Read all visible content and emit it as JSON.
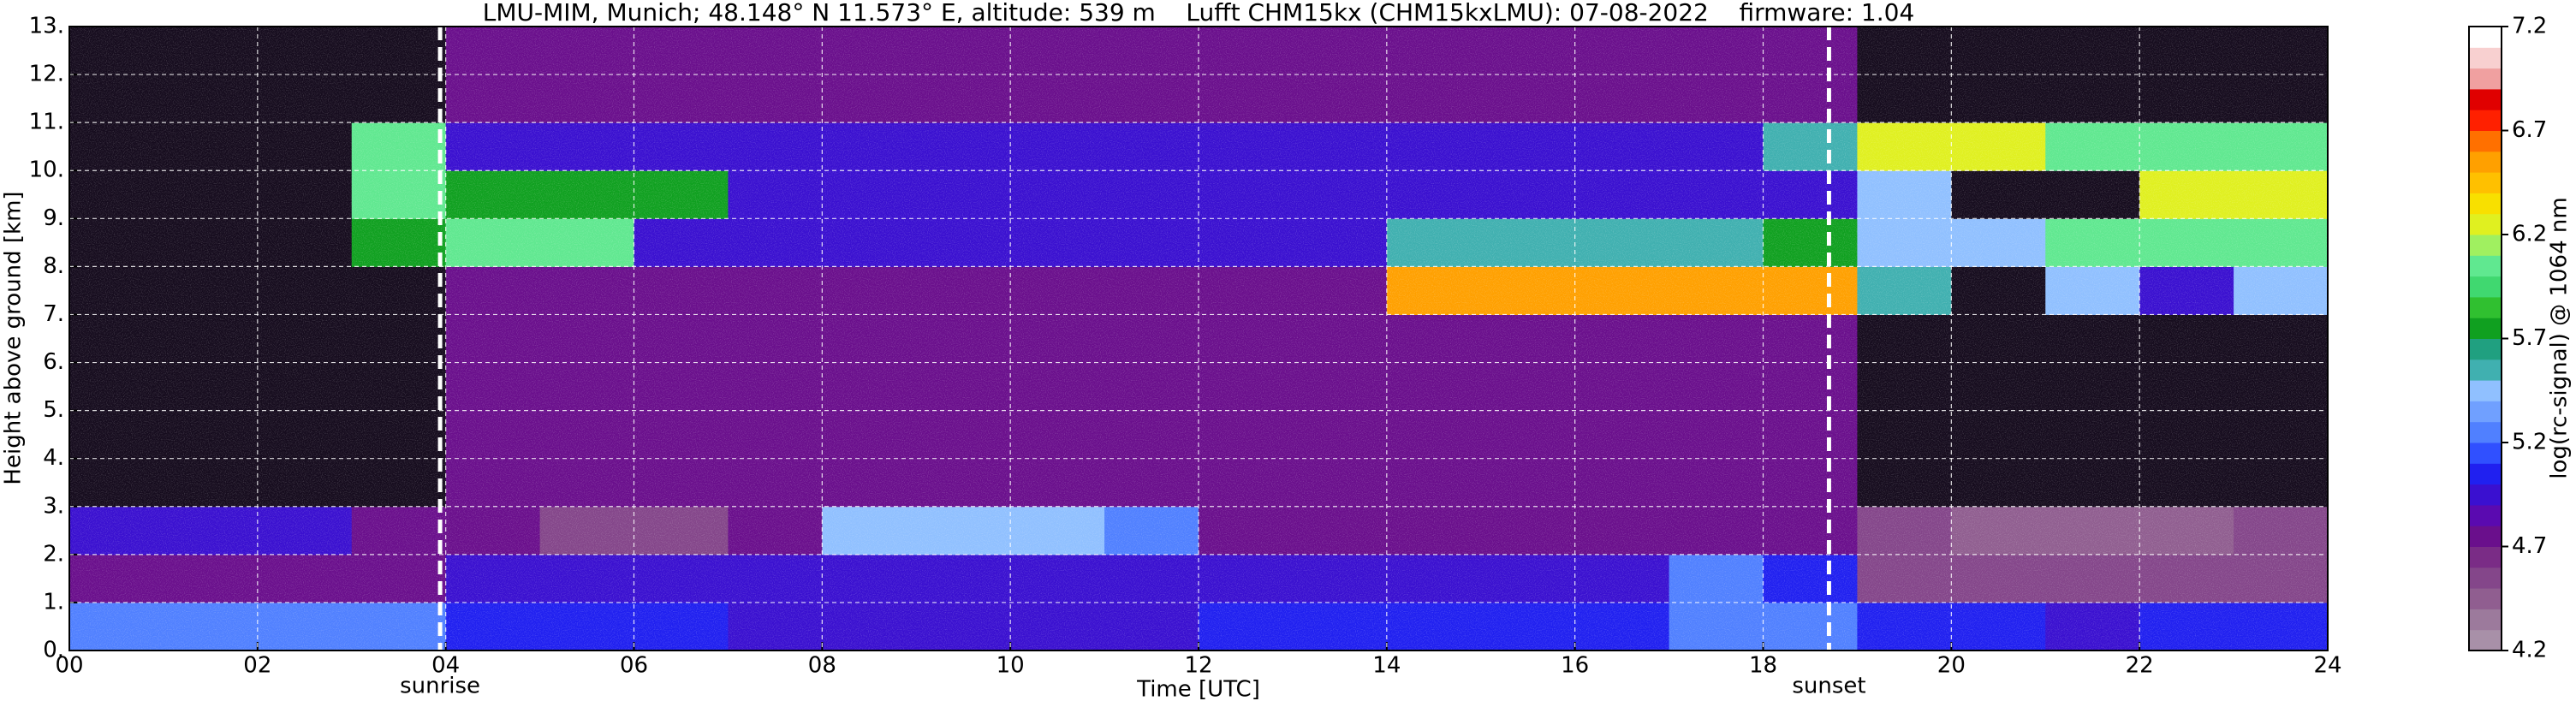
{
  "chart_data": {
    "type": "heatmap",
    "title": "LMU-MIM, Munich; 48.148° N 11.573° E, altitude: 539 m    Lufft CHM15kx (CHM15kxLMU): 07-08-2022    firmware: 1.04",
    "xlabel": "Time [UTC]",
    "ylabel": "Height above ground [km]",
    "colorbar_label": "log(rc-signal) @ 1064 nm",
    "xlim": [
      0,
      24
    ],
    "xticks": [
      {
        "value": 0,
        "label": "00"
      },
      {
        "value": 2,
        "label": "02"
      },
      {
        "value": 4,
        "label": "04"
      },
      {
        "value": 6,
        "label": "06"
      },
      {
        "value": 8,
        "label": "08"
      },
      {
        "value": 10,
        "label": "10"
      },
      {
        "value": 12,
        "label": "12"
      },
      {
        "value": 14,
        "label": "14"
      },
      {
        "value": 16,
        "label": "16"
      },
      {
        "value": 18,
        "label": "18"
      },
      {
        "value": 20,
        "label": "20"
      },
      {
        "value": 22,
        "label": "22"
      },
      {
        "value": 24,
        "label": "24"
      }
    ],
    "ylim": [
      0,
      13
    ],
    "yticks": [
      {
        "value": 0,
        "label": "0."
      },
      {
        "value": 1,
        "label": "1."
      },
      {
        "value": 2,
        "label": "2."
      },
      {
        "value": 3,
        "label": "3."
      },
      {
        "value": 4,
        "label": "4."
      },
      {
        "value": 5,
        "label": "5."
      },
      {
        "value": 6,
        "label": "6."
      },
      {
        "value": 7,
        "label": "7."
      },
      {
        "value": 8,
        "label": "8."
      },
      {
        "value": 9,
        "label": "9."
      },
      {
        "value": 10,
        "label": "10."
      },
      {
        "value": 11,
        "label": "11."
      },
      {
        "value": 12,
        "label": "12."
      },
      {
        "value": 13,
        "label": "13."
      }
    ],
    "grid": true,
    "clim": [
      4.2,
      7.2
    ],
    "cticks": [
      4.2,
      4.7,
      5.2,
      5.7,
      6.2,
      6.7,
      7.2
    ],
    "colormap": [
      "#a890a8",
      "#9c7a9c",
      "#905e90",
      "#84468a",
      "#7a2c86",
      "#6a0f8c",
      "#5a0ab0",
      "#3a10d0",
      "#2020f0",
      "#3050ff",
      "#5080ff",
      "#70a0ff",
      "#90c0ff",
      "#40b0b0",
      "#20a080",
      "#10a020",
      "#30c030",
      "#40d870",
      "#60e890",
      "#a0f060",
      "#e0f020",
      "#f8e000",
      "#ffc000",
      "#ffa000",
      "#ff7000",
      "#ff2000",
      "#e00000",
      "#f0a0a0",
      "#f8d0d0",
      "#ffffff"
    ],
    "under_color": "#160c1e",
    "x_bins": [
      0,
      1,
      2,
      3,
      4,
      5,
      6,
      7,
      8,
      9,
      10,
      11,
      12,
      13,
      14,
      15,
      16,
      17,
      18,
      19,
      20,
      21,
      22,
      23,
      24
    ],
    "y_bins": [
      0,
      1,
      2,
      3,
      4,
      5,
      6,
      7,
      8,
      9,
      10,
      11,
      12,
      13
    ],
    "z": [
      [
        5.3,
        5.3,
        5.2,
        5.2,
        5.1,
        5.1,
        5.1,
        5.0,
        5.0,
        5.0,
        5.0,
        5.0,
        5.1,
        5.1,
        5.1,
        5.1,
        5.1,
        5.2,
        5.2,
        5.1,
        5.1,
        5.0,
        5.1,
        5.1
      ],
      [
        4.7,
        4.7,
        4.7,
        4.8,
        4.9,
        4.9,
        4.9,
        4.9,
        4.9,
        4.9,
        4.9,
        4.9,
        4.9,
        4.9,
        4.9,
        4.9,
        5.0,
        5.3,
        5.1,
        4.6,
        4.6,
        4.6,
        4.6,
        4.6
      ],
      [
        5.0,
        5.0,
        4.9,
        4.7,
        4.7,
        4.6,
        4.6,
        4.7,
        5.5,
        5.5,
        5.5,
        5.3,
        4.7,
        4.7,
        4.7,
        4.7,
        4.7,
        4.7,
        4.7,
        4.6,
        4.5,
        4.5,
        4.5,
        4.6
      ],
      [
        4.0,
        4.0,
        4.0,
        4.0,
        4.8,
        4.8,
        4.8,
        4.8,
        4.8,
        4.8,
        4.8,
        4.8,
        4.8,
        4.8,
        4.8,
        4.8,
        4.8,
        4.8,
        4.8,
        4.0,
        4.0,
        4.0,
        4.0,
        4.0
      ],
      [
        4.0,
        4.0,
        4.0,
        4.0,
        4.8,
        4.8,
        4.8,
        4.8,
        4.8,
        4.8,
        4.8,
        4.8,
        4.8,
        4.8,
        4.8,
        4.8,
        4.8,
        4.8,
        4.8,
        4.0,
        4.0,
        4.0,
        4.0,
        4.0
      ],
      [
        4.0,
        4.0,
        4.0,
        4.0,
        4.8,
        4.8,
        4.8,
        4.8,
        4.8,
        4.8,
        4.8,
        4.8,
        4.8,
        4.8,
        4.8,
        4.8,
        4.8,
        4.8,
        4.8,
        4.0,
        4.0,
        4.0,
        4.0,
        4.0
      ],
      [
        4.0,
        4.0,
        4.0,
        4.0,
        4.8,
        4.8,
        4.8,
        4.8,
        4.8,
        4.8,
        4.8,
        4.8,
        4.8,
        4.8,
        4.8,
        4.8,
        4.8,
        4.8,
        4.8,
        4.0,
        4.0,
        4.0,
        4.0,
        4.0
      ],
      [
        4.0,
        4.0,
        4.0,
        4.0,
        4.8,
        4.8,
        4.8,
        4.8,
        4.8,
        4.8,
        4.8,
        4.8,
        4.8,
        4.8,
        6.5,
        6.5,
        6.5,
        6.5,
        6.5,
        5.6,
        4.0,
        5.4,
        5.0,
        5.4
      ],
      [
        4.0,
        4.0,
        4.0,
        5.8,
        6.0,
        6.0,
        4.9,
        4.9,
        4.9,
        4.9,
        4.9,
        4.9,
        4.9,
        4.9,
        5.6,
        5.6,
        5.6,
        5.6,
        5.8,
        5.4,
        5.4,
        6.0,
        6.0,
        6.0
      ],
      [
        4.0,
        4.0,
        4.0,
        6.0,
        5.7,
        5.7,
        5.7,
        4.9,
        4.9,
        4.9,
        4.9,
        4.9,
        4.9,
        4.9,
        5.0,
        5.0,
        5.0,
        5.0,
        5.0,
        5.5,
        4.0,
        4.0,
        6.2,
        6.2
      ],
      [
        4.0,
        4.0,
        4.0,
        6.0,
        4.9,
        4.9,
        4.9,
        4.9,
        4.9,
        4.9,
        4.9,
        4.9,
        4.9,
        4.9,
        5.0,
        5.0,
        5.0,
        5.0,
        5.6,
        6.3,
        6.3,
        6.0,
        6.0,
        6.0
      ],
      [
        4.0,
        4.0,
        4.0,
        4.0,
        4.8,
        4.8,
        4.8,
        4.8,
        4.8,
        4.8,
        4.8,
        4.8,
        4.8,
        4.8,
        4.8,
        4.8,
        4.8,
        4.8,
        4.8,
        4.0,
        4.0,
        4.0,
        4.0,
        4.0
      ],
      [
        4.0,
        4.0,
        4.0,
        4.0,
        4.8,
        4.8,
        4.8,
        4.8,
        4.8,
        4.8,
        4.8,
        4.8,
        4.8,
        4.8,
        4.8,
        4.8,
        4.8,
        4.8,
        4.8,
        4.0,
        4.0,
        4.0,
        4.0,
        4.0
      ]
    ],
    "annotations": [
      {
        "text": "sunrise",
        "x": 3.94
      },
      {
        "text": "sunset",
        "x": 18.7
      }
    ]
  }
}
